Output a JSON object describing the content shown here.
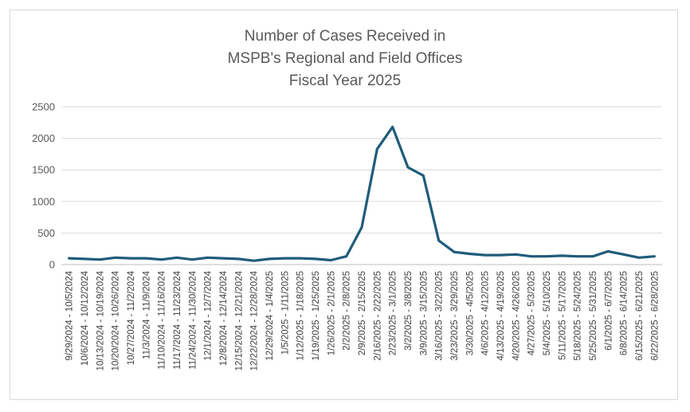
{
  "chart_data": {
    "type": "line",
    "title_lines": [
      "Number of Cases Received in",
      "MSPB's Regional and Field Offices",
      "Fiscal Year 2025"
    ],
    "xlabel": "",
    "ylabel": "",
    "ylim": [
      0,
      2500
    ],
    "yticks": [
      0,
      500,
      1000,
      1500,
      2000,
      2500
    ],
    "grid": "horizontal",
    "legend": "none",
    "line_color": "#1f5c7a",
    "categories": [
      "9/29/2024 - 10/5/2024",
      "10/6/2024 - 10/12/2024",
      "10/13/2024 - 10/19/2024",
      "10/20/2024 - 10/26/2024",
      "10/27/2024 - 11/2/2024",
      "11/3/2024 - 11/9/2024",
      "11/10/2024 - 11/16/2024",
      "11/17/2024 - 11/23/2024",
      "11/24/2024 - 11/30/2024",
      "12/1/2024 - 12/7/2024",
      "12/8/2024 - 12/14/2024",
      "12/15/2024 - 12/21/2024",
      "12/22/2024 - 12/28/2024",
      "12/29/2024 - 1/4/2025",
      "1/5/2025 - 1/11/2025",
      "1/12/2025 - 1/18/2025",
      "1/19/2025 - 1/25/2025",
      "1/26/2025 - 2/1/2025",
      "2/2/2025 - 2/8/2025",
      "2/9/2025 - 2/15/2025",
      "2/16/2025 - 2/22/2025",
      "2/23/2025 - 3/1/2025",
      "3/2/2025 - 3/8/2025",
      "3/9/2025 - 3/15/2025",
      "3/16/2025 - 3/22/2025",
      "3/23/2025 - 3/29/2025",
      "3/30/2025 - 4/5/2025",
      "4/6/2025 - 4/12/2025",
      "4/13/2025 - 4/19/2025",
      "4/20/2025 - 4/26/2025",
      "4/27/2025 - 5/3/2025",
      "5/4/2025 - 5/10/2025",
      "5/11/2025 - 5/17/2025",
      "5/18/2025 - 5/24/2025",
      "5/25/2025 - 5/31/2025",
      "6/1/2025 - 6/7/2025",
      "6/8/2025 - 6/14/2025",
      "6/15/2025 - 6/21/2025",
      "6/22/2025 - 6/28/2025"
    ],
    "series": [
      {
        "name": "Cases Received",
        "values": [
          100,
          90,
          80,
          110,
          100,
          100,
          80,
          110,
          80,
          110,
          100,
          90,
          60,
          90,
          100,
          100,
          90,
          70,
          130,
          590,
          1830,
          2180,
          1540,
          1410,
          380,
          200,
          170,
          150,
          150,
          160,
          130,
          130,
          140,
          130,
          130,
          210,
          160,
          110,
          130
        ]
      }
    ]
  }
}
